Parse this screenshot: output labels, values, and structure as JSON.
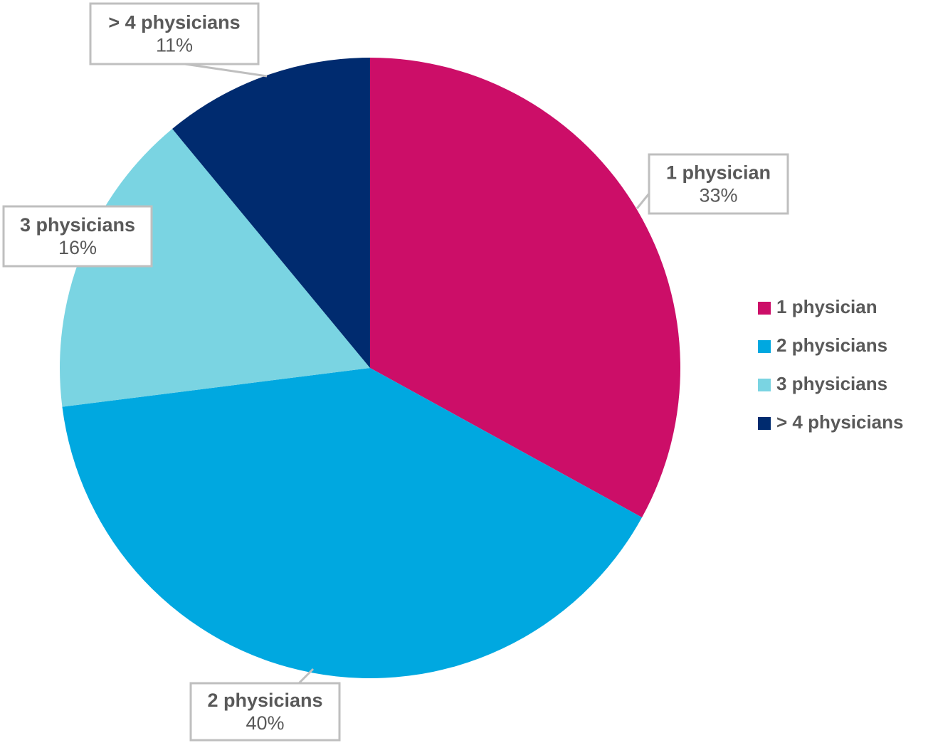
{
  "chart_data": {
    "type": "pie",
    "categories": [
      "1 physician",
      "2 physicians",
      "3 physicians",
      "> 4 physicians"
    ],
    "values": [
      33,
      40,
      16,
      11
    ],
    "value_labels": [
      "33%",
      "40%",
      "16%",
      "11%"
    ],
    "colors": [
      "#cc0e68",
      "#00a8e0",
      "#7ad4e2",
      "#002b6f"
    ],
    "legend": "right"
  }
}
